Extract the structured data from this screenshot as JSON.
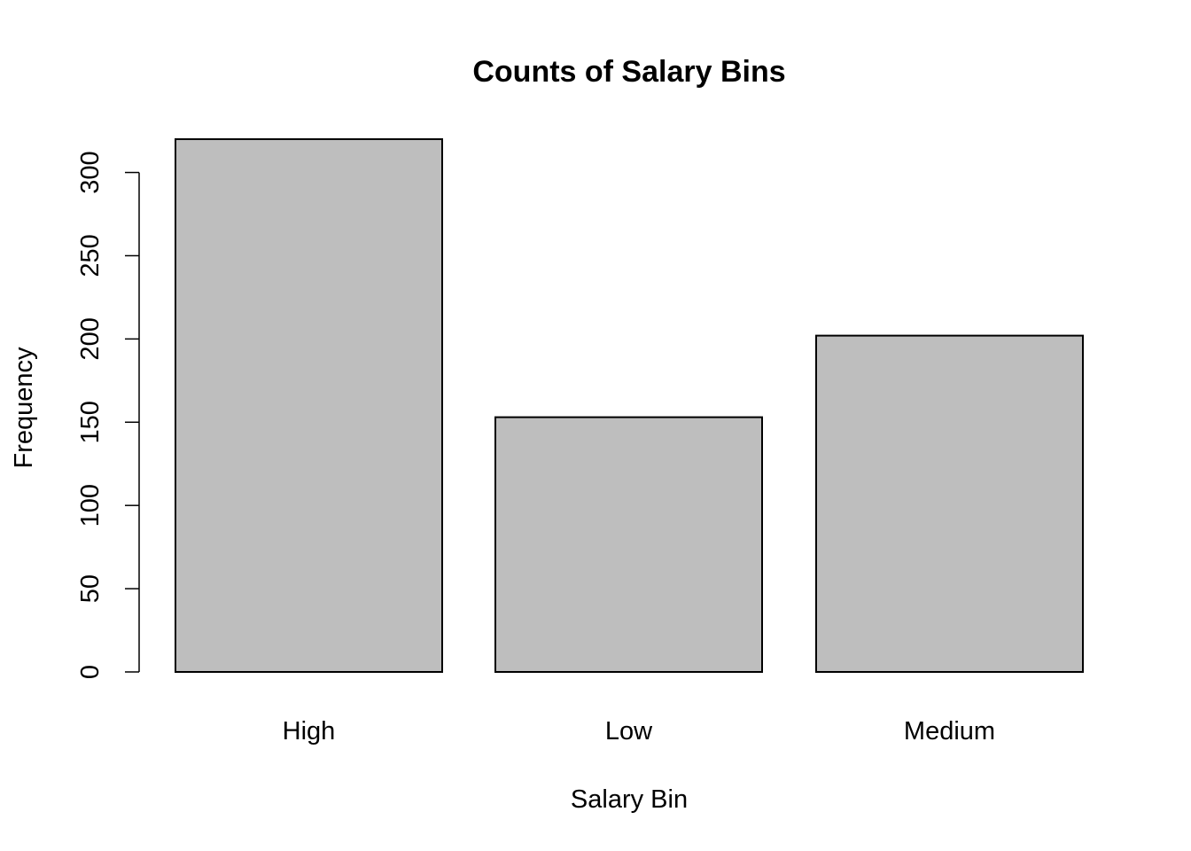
{
  "chart_data": {
    "type": "bar",
    "title": "Counts of Salary Bins",
    "xlabel": "Salary Bin",
    "ylabel": "Frequency",
    "categories": [
      "High",
      "Low",
      "Medium"
    ],
    "values": [
      320,
      153,
      202
    ],
    "ylim": [
      0,
      320
    ],
    "yticks": [
      0,
      50,
      100,
      150,
      200,
      250,
      300
    ],
    "grid": false,
    "legend": "none",
    "bar_color": "#bebebe",
    "border_color": "#000000"
  }
}
